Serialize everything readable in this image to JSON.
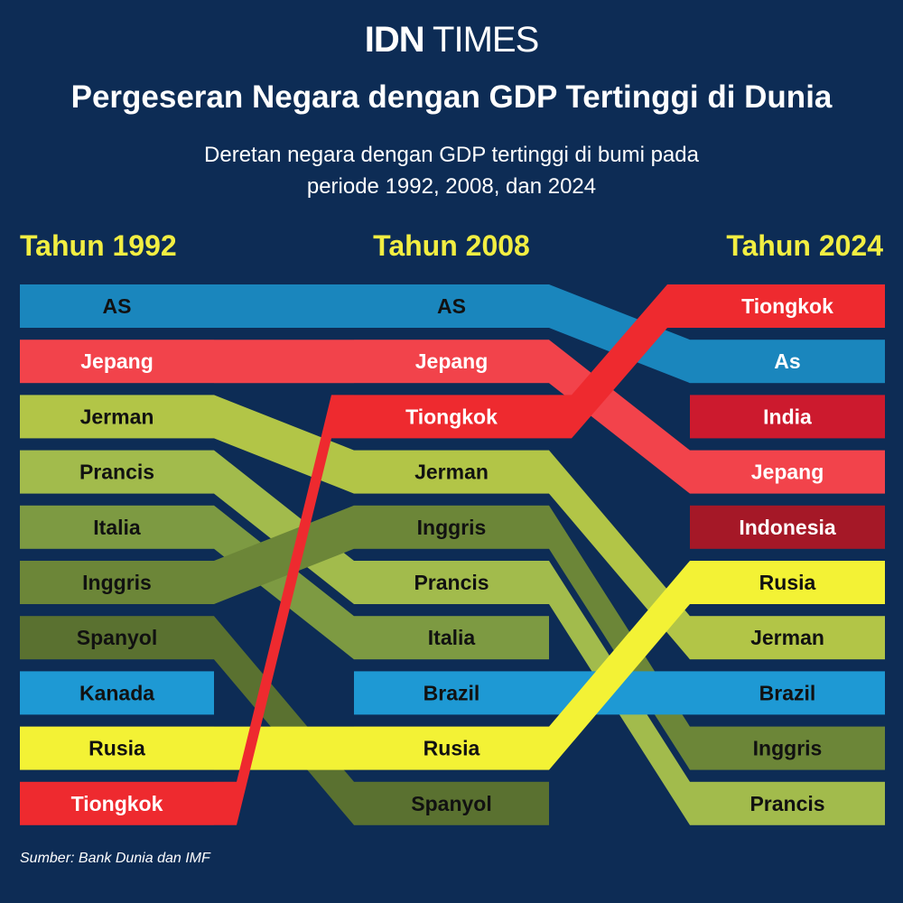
{
  "brand": {
    "part1": "IDN",
    "part2": " TIMES"
  },
  "title": "Pergeseran Negara dengan GDP Tertinggi di Dunia",
  "subtitle": [
    "Deretan negara dengan GDP tertinggi di bumi pada",
    "periode 1992, 2008, dan 2024"
  ],
  "source": "Sumber: Bank Dunia dan IMF",
  "colors": {
    "background": "#0d2c55",
    "heading": "#f2ee42",
    "AS": "#1a86bd",
    "Jepang": "#f2434b",
    "Tiongkok": "#ee2a2f",
    "Jerman": "#b2c547",
    "Prancis": "#a2bb4c",
    "Italia": "#7d9a42",
    "Inggris": "#6c8638",
    "Spanyol": "#5a7130",
    "Kanada": "#1e99d4",
    "Brazil": "#1e99d4",
    "Rusia": "#f3f235",
    "India": "#cc1a2e",
    "Indonesia": "#a51827"
  },
  "chart_data": {
    "type": "bump",
    "columns": [
      "Tahun 1992",
      "Tahun 2008",
      "Tahun 2024"
    ],
    "series": [
      {
        "name": "AS",
        "labels": [
          "AS",
          "AS",
          "As"
        ],
        "ranks": [
          1,
          1,
          2
        ],
        "text_color": "#111111",
        "text_color_last": "#ffffff",
        "extend": false
      },
      {
        "name": "Jepang",
        "labels": [
          "Jepang",
          "Jepang",
          "Jepang"
        ],
        "ranks": [
          2,
          2,
          4
        ],
        "text_color": "#ffffff",
        "extend": false
      },
      {
        "name": "Jerman",
        "labels": [
          "Jerman",
          "Jerman",
          "Jerman"
        ],
        "ranks": [
          3,
          4,
          7
        ],
        "text_color": "#111111",
        "extend": false
      },
      {
        "name": "Prancis",
        "labels": [
          "Prancis",
          "Prancis",
          "Prancis"
        ],
        "ranks": [
          4,
          6,
          10
        ],
        "text_color": "#111111",
        "extend": false
      },
      {
        "name": "Italia",
        "labels": [
          "Italia",
          "Italia",
          null
        ],
        "ranks": [
          5,
          7,
          null
        ],
        "text_color": "#111111",
        "extend": false
      },
      {
        "name": "Inggris",
        "labels": [
          "Inggris",
          "Inggris",
          "Inggris"
        ],
        "ranks": [
          6,
          5,
          9
        ],
        "text_color": "#111111",
        "extend": false
      },
      {
        "name": "Spanyol",
        "labels": [
          "Spanyol",
          "Spanyol",
          null
        ],
        "ranks": [
          7,
          10,
          null
        ],
        "text_color": "#111111",
        "extend": false
      },
      {
        "name": "Kanada",
        "labels": [
          "Kanada",
          null,
          null
        ],
        "ranks": [
          8,
          null,
          null
        ],
        "text_color": "#111111",
        "extend": false
      },
      {
        "name": "Brazil",
        "labels": [
          null,
          "Brazil",
          "Brazil"
        ],
        "ranks": [
          null,
          8,
          8
        ],
        "text_color": "#111111",
        "extend": false
      },
      {
        "name": "Rusia",
        "labels": [
          "Rusia",
          "Rusia",
          "Rusia"
        ],
        "ranks": [
          9,
          9,
          6
        ],
        "text_color": "#111111",
        "extend": false
      },
      {
        "name": "India",
        "labels": [
          null,
          null,
          "India"
        ],
        "ranks": [
          null,
          null,
          3
        ],
        "text_color": "#ffffff",
        "extend": false
      },
      {
        "name": "Indonesia",
        "labels": [
          null,
          null,
          "Indonesia"
        ],
        "ranks": [
          null,
          null,
          5
        ],
        "text_color": "#ffffff",
        "extend": false
      },
      {
        "name": "Tiongkok",
        "labels": [
          "Tiongkok",
          "Tiongkok",
          "Tiongkok"
        ],
        "ranks": [
          10,
          3,
          1
        ],
        "text_color": "#ffffff",
        "extend": true
      }
    ]
  }
}
